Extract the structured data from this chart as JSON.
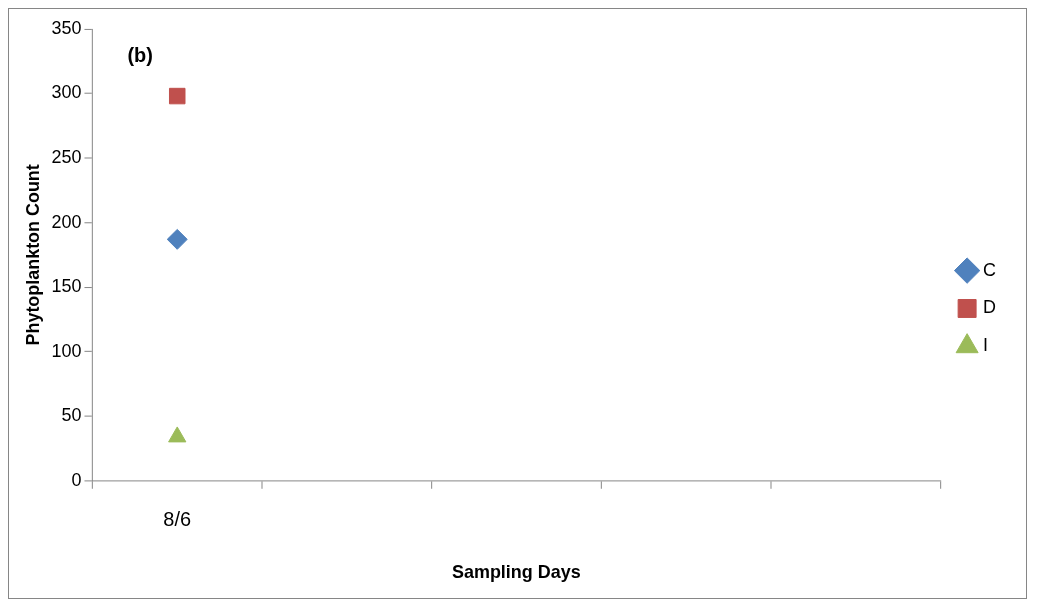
{
  "chart_data": {
    "type": "scatter",
    "xlabel": "Sampling Days",
    "ylabel": "Phytoplankton Count",
    "annotations": [
      "(b)"
    ],
    "categories": [
      "8/6",
      null,
      null,
      null,
      null
    ],
    "series": [
      {
        "name": "C",
        "color": "#4f81bd",
        "marker": "diamond",
        "values": [
          187,
          null,
          null,
          null,
          null
        ]
      },
      {
        "name": "D",
        "color": "#c0504d",
        "marker": "square",
        "values": [
          298,
          null,
          null,
          null,
          null
        ]
      },
      {
        "name": "I",
        "color": "#9bbb59",
        "marker": "triangle",
        "values": [
          34,
          null,
          null,
          null,
          null
        ]
      }
    ],
    "ylim": [
      0,
      350
    ],
    "yticks": [
      0,
      50,
      100,
      150,
      200,
      250,
      300,
      350
    ],
    "grid": false,
    "legend": "right"
  }
}
